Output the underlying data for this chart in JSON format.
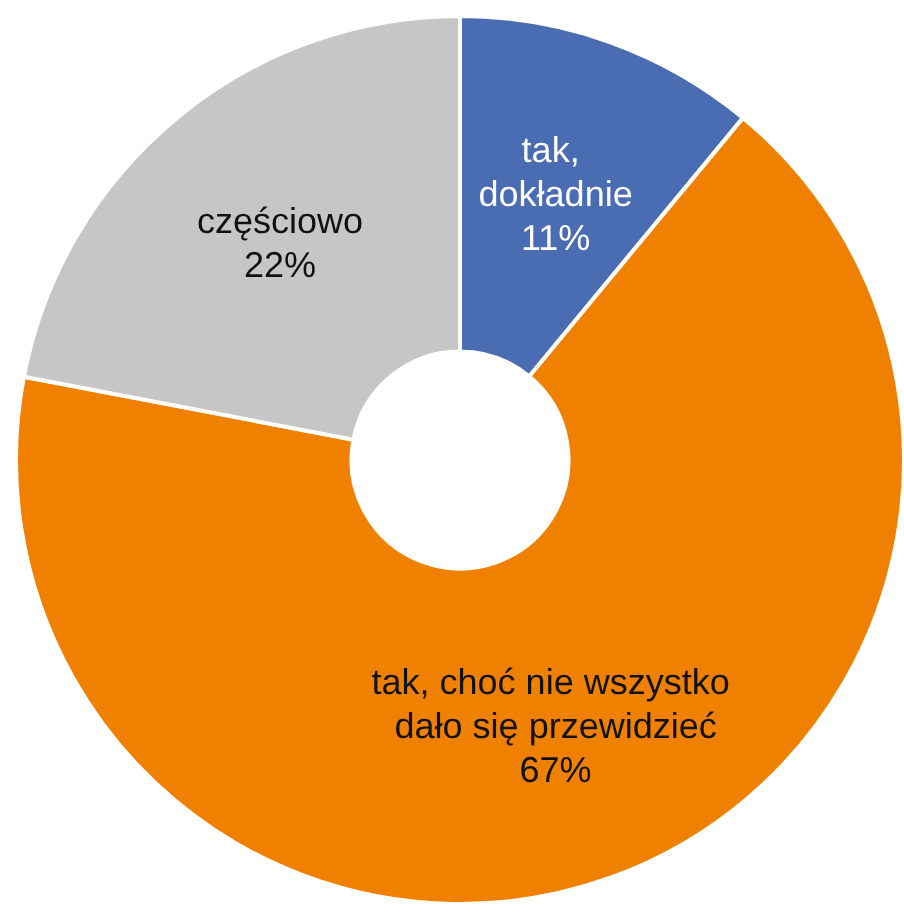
{
  "chart_data": {
    "type": "donut",
    "categories": [
      "tak, dokładnie",
      "tak, choć nie wszystko dało się przewidzieć",
      "częściowo"
    ],
    "values": [
      11,
      67,
      22
    ],
    "colors": [
      "#4a6cb3",
      "#f08000",
      "#c6c6c6"
    ],
    "value_labels": [
      "11%",
      "67%",
      "22%"
    ]
  }
}
